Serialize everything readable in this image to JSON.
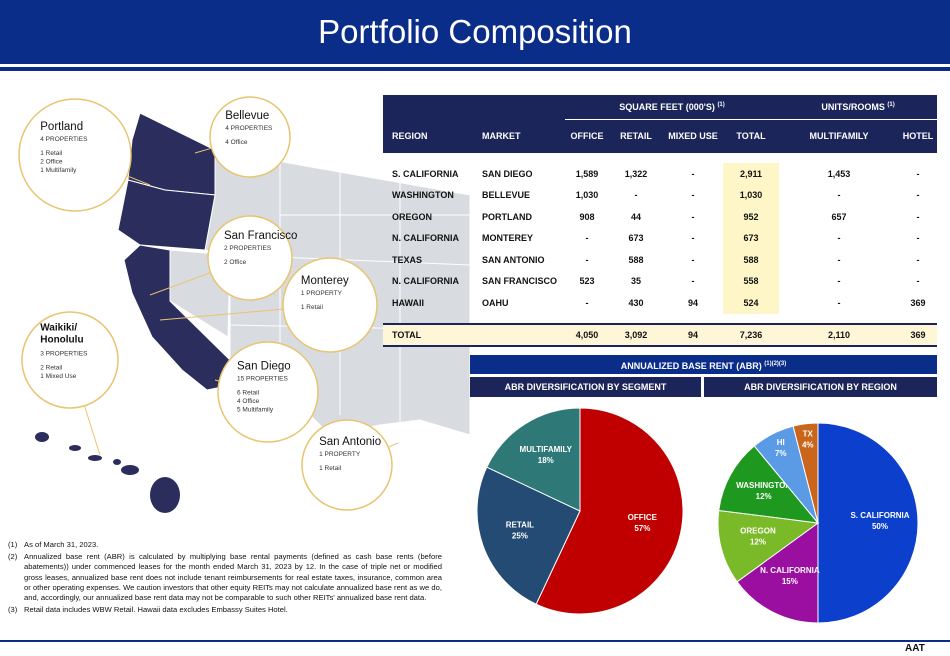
{
  "header": {
    "title": "Portfolio Composition"
  },
  "map": {
    "callouts": [
      {
        "name": "Portland",
        "count": "4 PROPERTIES",
        "details": [
          "1 Retail",
          "2 Office",
          "1 Multifamily"
        ]
      },
      {
        "name": "Bellevue",
        "count": "4 PROPERTIES",
        "details": [
          "4 Office"
        ]
      },
      {
        "name": "San Francisco",
        "count": "2 PROPERTIES",
        "details": [
          "2 Office"
        ]
      },
      {
        "name": "Monterey",
        "count": "1 PROPERTY",
        "details": [
          "1 Retail"
        ]
      },
      {
        "name": "Waikiki/ Honolulu",
        "count": "3 PROPERTIES",
        "details": [
          "2 Retail",
          "1 Mixed Use"
        ]
      },
      {
        "name": "San Diego",
        "count": "15 PROPERTIES",
        "details": [
          "6 Retail",
          "4 Office",
          "5 Multifamily"
        ]
      },
      {
        "name": "San Antonio",
        "count": "1 PROPERTY",
        "details": [
          "1 Retail"
        ]
      }
    ]
  },
  "table": {
    "group_headers": [
      {
        "label": "SQUARE FEET (000'S)",
        "note": "(1)"
      },
      {
        "label": "UNITS/ROOMS",
        "note": "(1)"
      }
    ],
    "columns": [
      "REGION",
      "MARKET",
      "OFFICE",
      "RETAIL",
      "MIXED USE",
      "TOTAL",
      "MULTIFAMILY",
      "HOTEL"
    ],
    "rows": [
      [
        "S. CALIFORNIA",
        "SAN DIEGO",
        "1,589",
        "1,322",
        "-",
        "2,911",
        "1,453",
        "-"
      ],
      [
        "WASHINGTON",
        "BELLEVUE",
        "1,030",
        "-",
        "-",
        "1,030",
        "-",
        "-"
      ],
      [
        "OREGON",
        "PORTLAND",
        "908",
        "44",
        "-",
        "952",
        "657",
        "-"
      ],
      [
        "N. CALIFORNIA",
        "MONTEREY",
        "-",
        "673",
        "-",
        "673",
        "-",
        "-"
      ],
      [
        "TEXAS",
        "SAN ANTONIO",
        "-",
        "588",
        "-",
        "588",
        "-",
        "-"
      ],
      [
        "N. CALIFORNIA",
        "SAN FRANCISCO",
        "523",
        "35",
        "-",
        "558",
        "-",
        "-"
      ],
      [
        "HAWAII",
        "OAHU",
        "-",
        "430",
        "94",
        "524",
        "-",
        "369"
      ]
    ],
    "total": [
      "TOTAL",
      "4,050",
      "3,092",
      "94",
      "7,236",
      "2,110",
      "369"
    ]
  },
  "abr": {
    "title": "ANNUALIZED BASE RENT (ABR)",
    "note": "(1)(2)(3)"
  },
  "chart_data": [
    {
      "type": "pie",
      "title": "ABR DIVERSIFICATION BY SEGMENT",
      "categories": [
        "OFFICE",
        "RETAIL",
        "MULTIFAMILY"
      ],
      "values": [
        57,
        25,
        18
      ],
      "value_labels": [
        "57%",
        "25%",
        "18%"
      ],
      "colors": [
        "#c00000",
        "#244b73",
        "#2e7878"
      ]
    },
    {
      "type": "pie",
      "title": "ABR DIVERSIFICATION BY REGION",
      "categories": [
        "S. CALIFORNIA",
        "N. CALIFORNIA",
        "OREGON",
        "WASHINGTON",
        "HI",
        "TX"
      ],
      "values": [
        50,
        15,
        12,
        12,
        7,
        4
      ],
      "value_labels": [
        "50%",
        "15%",
        "12%",
        "12%",
        "7%",
        "4%"
      ],
      "colors": [
        "#0b3fcc",
        "#9a0fa0",
        "#7ab928",
        "#1e981e",
        "#5b9be6",
        "#c9661b"
      ]
    }
  ],
  "footnotes": [
    {
      "marker": "(1)",
      "text": "As of March 31, 2023."
    },
    {
      "marker": "(2)",
      "text": "Annualized base rent (ABR) is calculated by multiplying base rental payments (defined as cash base rents (before abatements)) under commenced leases for the month ended March 31, 2023 by 12. In the case of triple net or modified gross leases, annualized base rent does not include tenant reimbursements for real estate taxes, insurance, common area or other operating expenses. We caution investors that other equity REITs may not calculate annualized base rent as we do, and, accordingly, our annualized base rent data may not be comparable to such other REITs' annualized base rent data."
    },
    {
      "marker": "(3)",
      "text": "Retail data includes WBW Retail. Hawaii data excludes Embassy Suites Hotel."
    }
  ],
  "logo": "AAT"
}
